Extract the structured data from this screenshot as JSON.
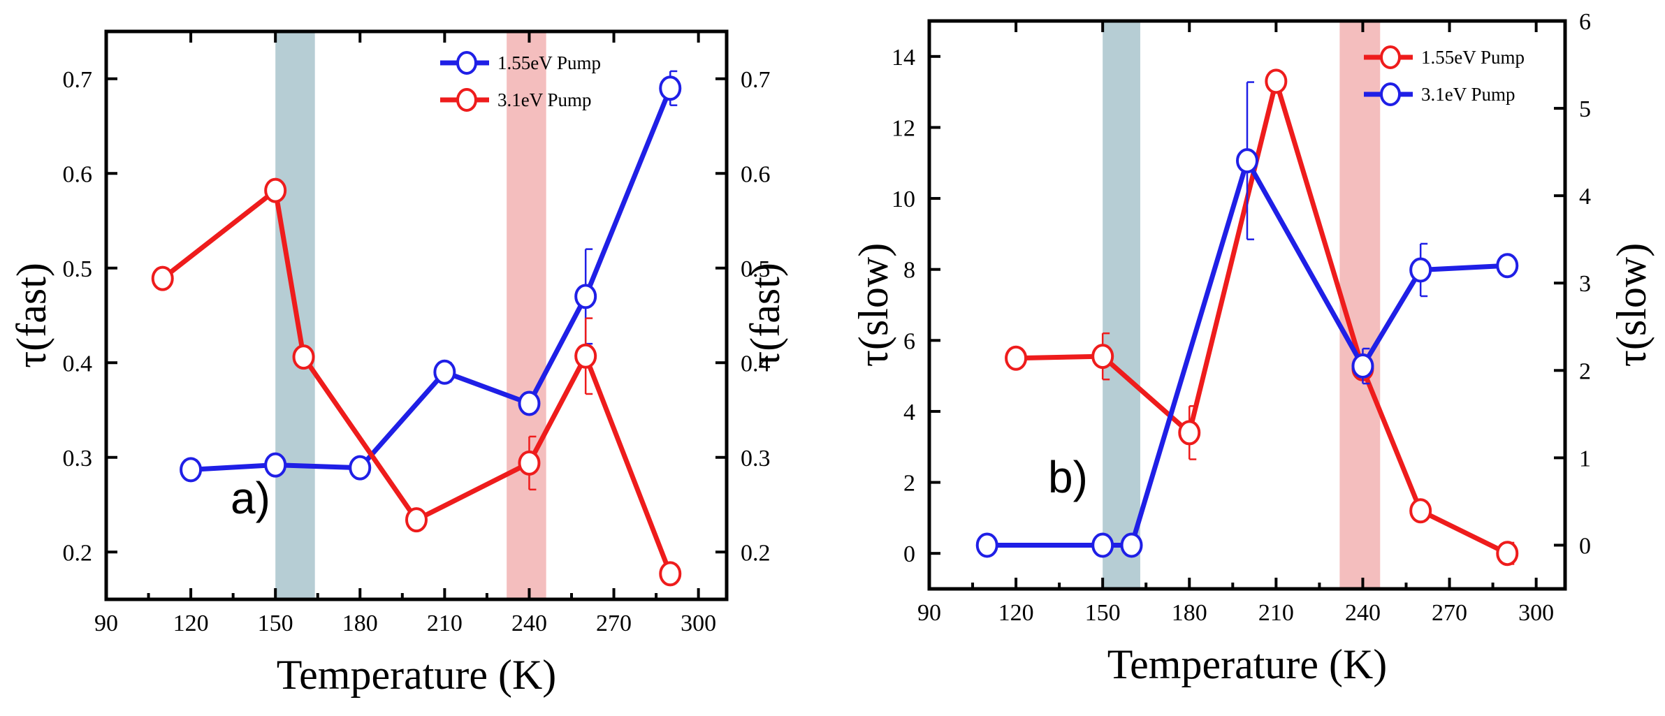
{
  "chart_data": [
    {
      "type": "line",
      "panel_label": "a)",
      "xlabel": "Temperature (K)",
      "ylabel_left": "τ(fast)",
      "ylabel_right": "τ(fast)",
      "xlim": [
        90,
        310
      ],
      "ylim": [
        0.15,
        0.75
      ],
      "ylim_right": [
        0.15,
        0.75
      ],
      "xticks": [
        90,
        120,
        150,
        180,
        210,
        240,
        270,
        300
      ],
      "yticks": [
        0.2,
        0.3,
        0.4,
        0.5,
        0.6,
        0.7
      ],
      "yticks_right": [
        0.2,
        0.3,
        0.4,
        0.5,
        0.6,
        0.7
      ],
      "shaded_bands": [
        {
          "x0": 150,
          "x1": 164,
          "color": "#a9c4cc"
        },
        {
          "x0": 232,
          "x1": 246,
          "color": "#f2b3b3"
        }
      ],
      "legend_position": "top-right",
      "series": [
        {
          "name": "1.55eV Pump",
          "color": "#1f1fe6",
          "axis": "left",
          "x": [
            120,
            150,
            180,
            210,
            240,
            260,
            290
          ],
          "y": [
            0.287,
            0.292,
            0.289,
            0.39,
            0.357,
            0.47,
            0.69
          ],
          "err": [
            0.008,
            0.008,
            0.008,
            0.01,
            0.01,
            0.05,
            0.018
          ]
        },
        {
          "name": "3.1eV Pump",
          "color": "#ee1c1c",
          "axis": "left",
          "x": [
            110,
            150,
            160,
            200,
            240,
            260,
            290
          ],
          "y": [
            0.489,
            0.582,
            0.406,
            0.234,
            0.294,
            0.407,
            0.177
          ],
          "err": [
            0.008,
            0.005,
            0.005,
            0.005,
            0.028,
            0.04,
            0.008
          ]
        }
      ]
    },
    {
      "type": "line",
      "panel_label": "b)",
      "xlabel": "Temperature (K)",
      "ylabel_left": "τ(slow)",
      "ylabel_right": "τ(slow)",
      "xlim": [
        90,
        310
      ],
      "ylim": [
        -1,
        15
      ],
      "ylim_right": [
        -0.5,
        6
      ],
      "xticks": [
        90,
        120,
        150,
        180,
        210,
        240,
        270,
        300
      ],
      "yticks": [
        0,
        2,
        4,
        6,
        8,
        10,
        12,
        14
      ],
      "yticks_right": [
        0,
        1,
        2,
        3,
        4,
        5,
        6
      ],
      "shaded_bands": [
        {
          "x0": 150,
          "x1": 163,
          "color": "#a9c4cc"
        },
        {
          "x0": 232,
          "x1": 246,
          "color": "#f2b3b3"
        }
      ],
      "legend_position": "top-right",
      "series": [
        {
          "name": "1.55eV Pump",
          "color": "#ee1c1c",
          "axis": "left",
          "x": [
            120,
            150,
            180,
            210,
            240,
            260,
            290
          ],
          "y": [
            5.5,
            5.55,
            3.4,
            13.3,
            5.2,
            1.2,
            0.0
          ],
          "err": [
            0.1,
            0.65,
            0.75,
            0.2,
            0.2,
            0.1,
            0.3
          ]
        },
        {
          "name": "3.1eV Pump",
          "color": "#1f1fe6",
          "axis": "right",
          "x": [
            110,
            150,
            160,
            200,
            240,
            260,
            290
          ],
          "y": [
            0.0,
            0.0,
            0.0,
            4.4,
            2.05,
            3.15,
            3.2
          ],
          "err": [
            0.0,
            0.0,
            0.0,
            0.9,
            0.2,
            0.3,
            0.1
          ]
        }
      ]
    }
  ]
}
